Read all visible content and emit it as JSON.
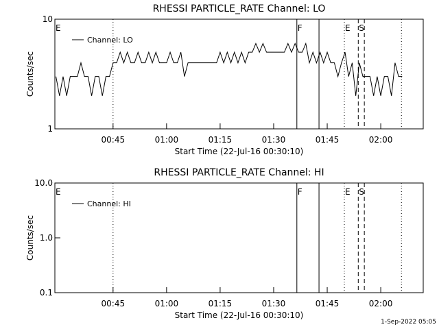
{
  "chart_data": [
    {
      "type": "line",
      "title": "RHESSI PARTICLE_RATE Channel: LO",
      "xlabel": "Start Time (22-Jul-16 00:30:10)",
      "ylabel": "Counts/sec",
      "ylog": true,
      "ylim": [
        1,
        10
      ],
      "yticks": [
        1,
        10
      ],
      "xlim": [
        28.7,
        131.9
      ],
      "xticks": [
        {
          "value": 45,
          "label": "00:45"
        },
        {
          "value": 60,
          "label": "01:00"
        },
        {
          "value": 75,
          "label": "01:15"
        },
        {
          "value": 90,
          "label": "01:30"
        },
        {
          "value": 105,
          "label": "01:45"
        },
        {
          "value": 120,
          "label": "02:00"
        }
      ],
      "x": [
        29,
        30,
        31,
        32,
        33,
        34,
        35,
        36,
        37,
        38,
        39,
        40,
        41,
        42,
        43,
        44,
        45,
        46,
        47,
        48,
        49,
        50,
        51,
        52,
        53,
        54,
        55,
        56,
        57,
        58,
        59,
        60,
        61,
        62,
        63,
        64,
        65,
        66,
        67,
        68,
        69,
        70,
        71,
        72,
        73,
        74,
        75,
        76,
        77,
        78,
        79,
        80,
        81,
        82,
        83,
        84,
        85,
        86,
        87,
        88,
        89,
        90,
        91,
        92,
        93,
        94,
        95,
        96,
        97,
        98,
        99,
        100,
        101,
        102,
        103,
        104,
        105,
        106,
        107,
        108,
        109,
        110,
        111,
        112,
        113,
        114,
        115,
        116,
        117,
        118,
        119,
        120,
        121,
        122,
        123,
        124,
        125,
        126
      ],
      "series": [
        {
          "name": "Channel: LO",
          "color": "#000000",
          "values": [
            3,
            2,
            3,
            2,
            3,
            3,
            3,
            4,
            3,
            3,
            2,
            3,
            3,
            2,
            3,
            3,
            4,
            4,
            5,
            4,
            5,
            4,
            4,
            5,
            4,
            4,
            5,
            4,
            5,
            4,
            4,
            4,
            5,
            4,
            4,
            5,
            3,
            4,
            4,
            4,
            4,
            4,
            4,
            4,
            4,
            4,
            5,
            4,
            5,
            4,
            5,
            4,
            5,
            4,
            5,
            5,
            6,
            5,
            6,
            5,
            5,
            5,
            5,
            5,
            5,
            6,
            5,
            6,
            5,
            5,
            6,
            4,
            5,
            4,
            5,
            4,
            5,
            4,
            4,
            3,
            4,
            5,
            3,
            4,
            2,
            4,
            3,
            3,
            3,
            2,
            3,
            2,
            3,
            3,
            2,
            4,
            3,
            3
          ]
        }
      ],
      "vlines": [
        {
          "x": 45,
          "style": "dotted"
        },
        {
          "x": 96.5,
          "style": "solid"
        },
        {
          "x": 102.7,
          "style": "solid"
        },
        {
          "x": 109.8,
          "style": "dotted"
        },
        {
          "x": 113.7,
          "style": "dashed"
        },
        {
          "x": 115.4,
          "style": "dashed"
        },
        {
          "x": 125.8,
          "style": "dotted"
        }
      ],
      "flags": [
        {
          "x": 28.7,
          "label": "E"
        },
        {
          "x": 96.5,
          "label": "F"
        },
        {
          "x": 109.8,
          "label": "E"
        },
        {
          "x": 113.7,
          "label": "S"
        }
      ]
    },
    {
      "type": "line",
      "title": "RHESSI PARTICLE_RATE Channel: HI",
      "xlabel": "Start Time (22-Jul-16 00:30:10)",
      "ylabel": "Counts/sec",
      "ylog": true,
      "ylim": [
        0.1,
        10
      ],
      "yticks": [
        0.1,
        {
          "value": 1,
          "label": "1.0"
        },
        {
          "value": 10,
          "label": "10.0"
        }
      ],
      "xlim": [
        28.7,
        131.9
      ],
      "xticks": [
        {
          "value": 45,
          "label": "00:45"
        },
        {
          "value": 60,
          "label": "01:00"
        },
        {
          "value": 75,
          "label": "01:15"
        },
        {
          "value": 90,
          "label": "01:30"
        },
        {
          "value": 105,
          "label": "01:45"
        },
        {
          "value": 120,
          "label": "02:00"
        }
      ],
      "x": [],
      "series": [
        {
          "name": "Channel: HI",
          "color": "#000000",
          "values": []
        }
      ],
      "vlines": [
        {
          "x": 45,
          "style": "dotted"
        },
        {
          "x": 96.5,
          "style": "solid"
        },
        {
          "x": 102.7,
          "style": "solid"
        },
        {
          "x": 109.8,
          "style": "dotted"
        },
        {
          "x": 113.7,
          "style": "dashed"
        },
        {
          "x": 115.4,
          "style": "dashed"
        },
        {
          "x": 125.8,
          "style": "dotted"
        }
      ],
      "flags": [
        {
          "x": 28.7,
          "label": "E"
        },
        {
          "x": 96.5,
          "label": "F"
        },
        {
          "x": 109.8,
          "label": "E"
        },
        {
          "x": 113.7,
          "label": "S"
        }
      ]
    }
  ],
  "footer": "1-Sep-2022 05:05"
}
